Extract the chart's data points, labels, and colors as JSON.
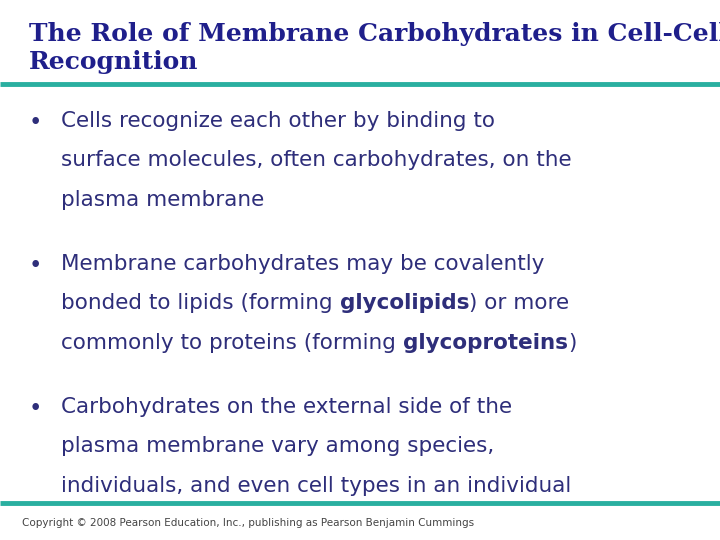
{
  "title_line1": "The Role of Membrane Carbohydrates in Cell-Cell",
  "title_line2": "Recognition",
  "title_color": "#1F1F8B",
  "title_fontsize": 18,
  "separator_color": "#2AAFA0",
  "separator_linewidth": 3.5,
  "background_color": "#FFFFFF",
  "bullet_color": "#2E2E7A",
  "bullet_fontsize": 15.5,
  "copyright_text": "Copyright © 2008 Pearson Education, Inc., publishing as Pearson Benjamin Cummings",
  "copyright_fontsize": 7.5,
  "copyright_color": "#444444"
}
